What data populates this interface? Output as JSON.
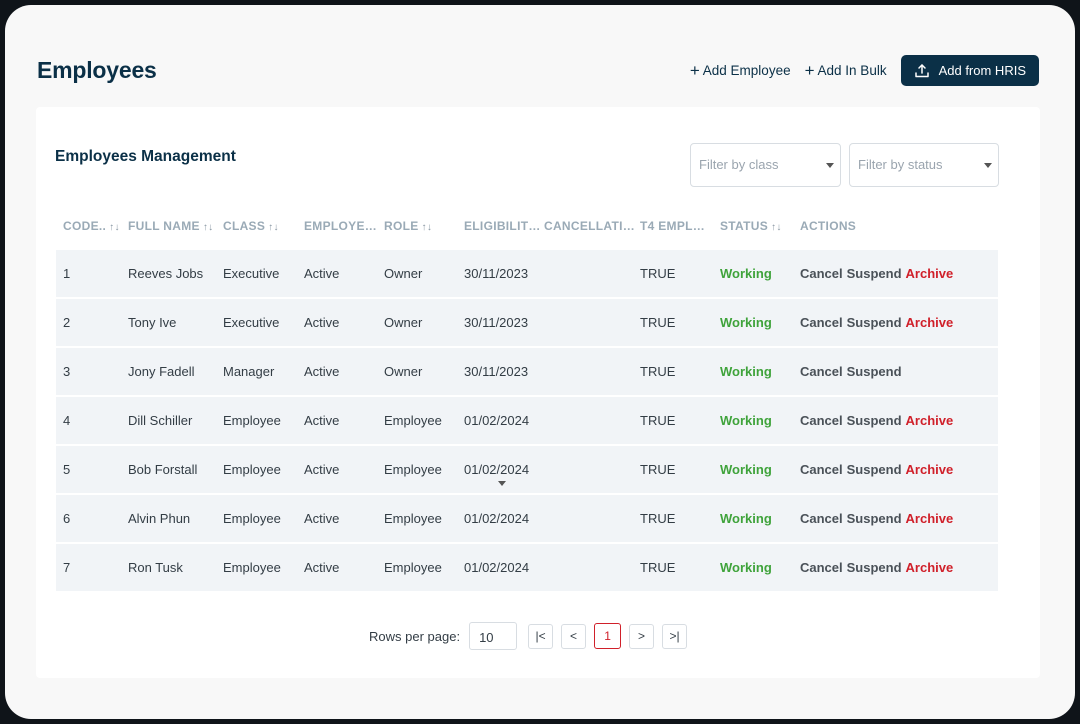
{
  "header": {
    "title": "Employees",
    "add_employee": "Add Employee",
    "add_bulk": "Add In Bulk",
    "add_hris": "Add from HRIS"
  },
  "card": {
    "title": "Employees Management",
    "filter_class_placeholder": "Filter by class",
    "filter_status_placeholder": "Filter by status"
  },
  "columns": [
    {
      "label": "CODE..",
      "sort": "↑↓"
    },
    {
      "label": "FULL NAME",
      "sort": "↑↓"
    },
    {
      "label": "CLASS",
      "sort": "↑↓"
    },
    {
      "label": "EMPLOYE…",
      "sort": ""
    },
    {
      "label": "ROLE",
      "sort": "↑↓"
    },
    {
      "label": "ELIGIBILIT…",
      "sort": ""
    },
    {
      "label": "CANCELLATI…",
      "sort": ""
    },
    {
      "label": "T4 EMPL…",
      "sort": ""
    },
    {
      "label": "STATUS",
      "sort": "↑↓"
    },
    {
      "label": "ACTIONS",
      "sort": ""
    }
  ],
  "rows": [
    {
      "code": "1",
      "name": "Reeves Jobs",
      "class": "Executive",
      "employment": "Active",
      "role": "Owner",
      "eligibility": "30/11/2023",
      "cancellation": "",
      "t4": "TRUE",
      "status": "Working",
      "actions": [
        "Cancel",
        "Suspend",
        "Archive"
      ]
    },
    {
      "code": "2",
      "name": "Tony Ive",
      "class": "Executive",
      "employment": "Active",
      "role": "Owner",
      "eligibility": "30/11/2023",
      "cancellation": "",
      "t4": "TRUE",
      "status": "Working",
      "actions": [
        "Cancel",
        "Suspend",
        "Archive"
      ]
    },
    {
      "code": "3",
      "name": "Jony Fadell",
      "class": "Manager",
      "employment": "Active",
      "role": "Owner",
      "eligibility": "30/11/2023",
      "cancellation": "",
      "t4": "TRUE",
      "status": "Working",
      "actions": [
        "Cancel",
        "Suspend"
      ]
    },
    {
      "code": "4",
      "name": "Dill Schiller",
      "class": "Employee",
      "employment": "Active",
      "role": "Employee",
      "eligibility": "01/02/2024",
      "cancellation": "",
      "t4": "TRUE",
      "status": "Working",
      "actions": [
        "Cancel",
        "Suspend",
        "Archive"
      ]
    },
    {
      "code": "5",
      "name": "Bob Forstall",
      "class": "Employee",
      "employment": "Active",
      "role": "Employee",
      "eligibility": "01/02/2024",
      "cancellation": "",
      "t4": "TRUE",
      "status": "Working",
      "actions": [
        "Cancel",
        "Suspend",
        "Archive"
      ]
    },
    {
      "code": "6",
      "name": "Alvin Phun",
      "class": "Employee",
      "employment": "Active",
      "role": "Employee",
      "eligibility": "01/02/2024",
      "cancellation": "",
      "t4": "TRUE",
      "status": "Working",
      "actions": [
        "Cancel",
        "Suspend",
        "Archive"
      ]
    },
    {
      "code": "7",
      "name": "Ron Tusk",
      "class": "Employee",
      "employment": "Active",
      "role": "Employee",
      "eligibility": "01/02/2024",
      "cancellation": "",
      "t4": "TRUE",
      "status": "Working",
      "actions": [
        "Cancel",
        "Suspend",
        "Archive"
      ]
    }
  ],
  "pagination": {
    "rows_per_page_label": "Rows per page:",
    "rows_per_page": "10",
    "first": "|<",
    "prev": "<",
    "current_page": "1",
    "next": ">",
    "last": ">|"
  },
  "colors": {
    "primary": "#0b3047",
    "status_working": "#3fa33b",
    "archive": "#d0202a"
  },
  "icons": {
    "plus": "plus-icon",
    "upload": "upload-icon",
    "sort": "sort-icon",
    "dropdown": "caret-down-icon"
  }
}
